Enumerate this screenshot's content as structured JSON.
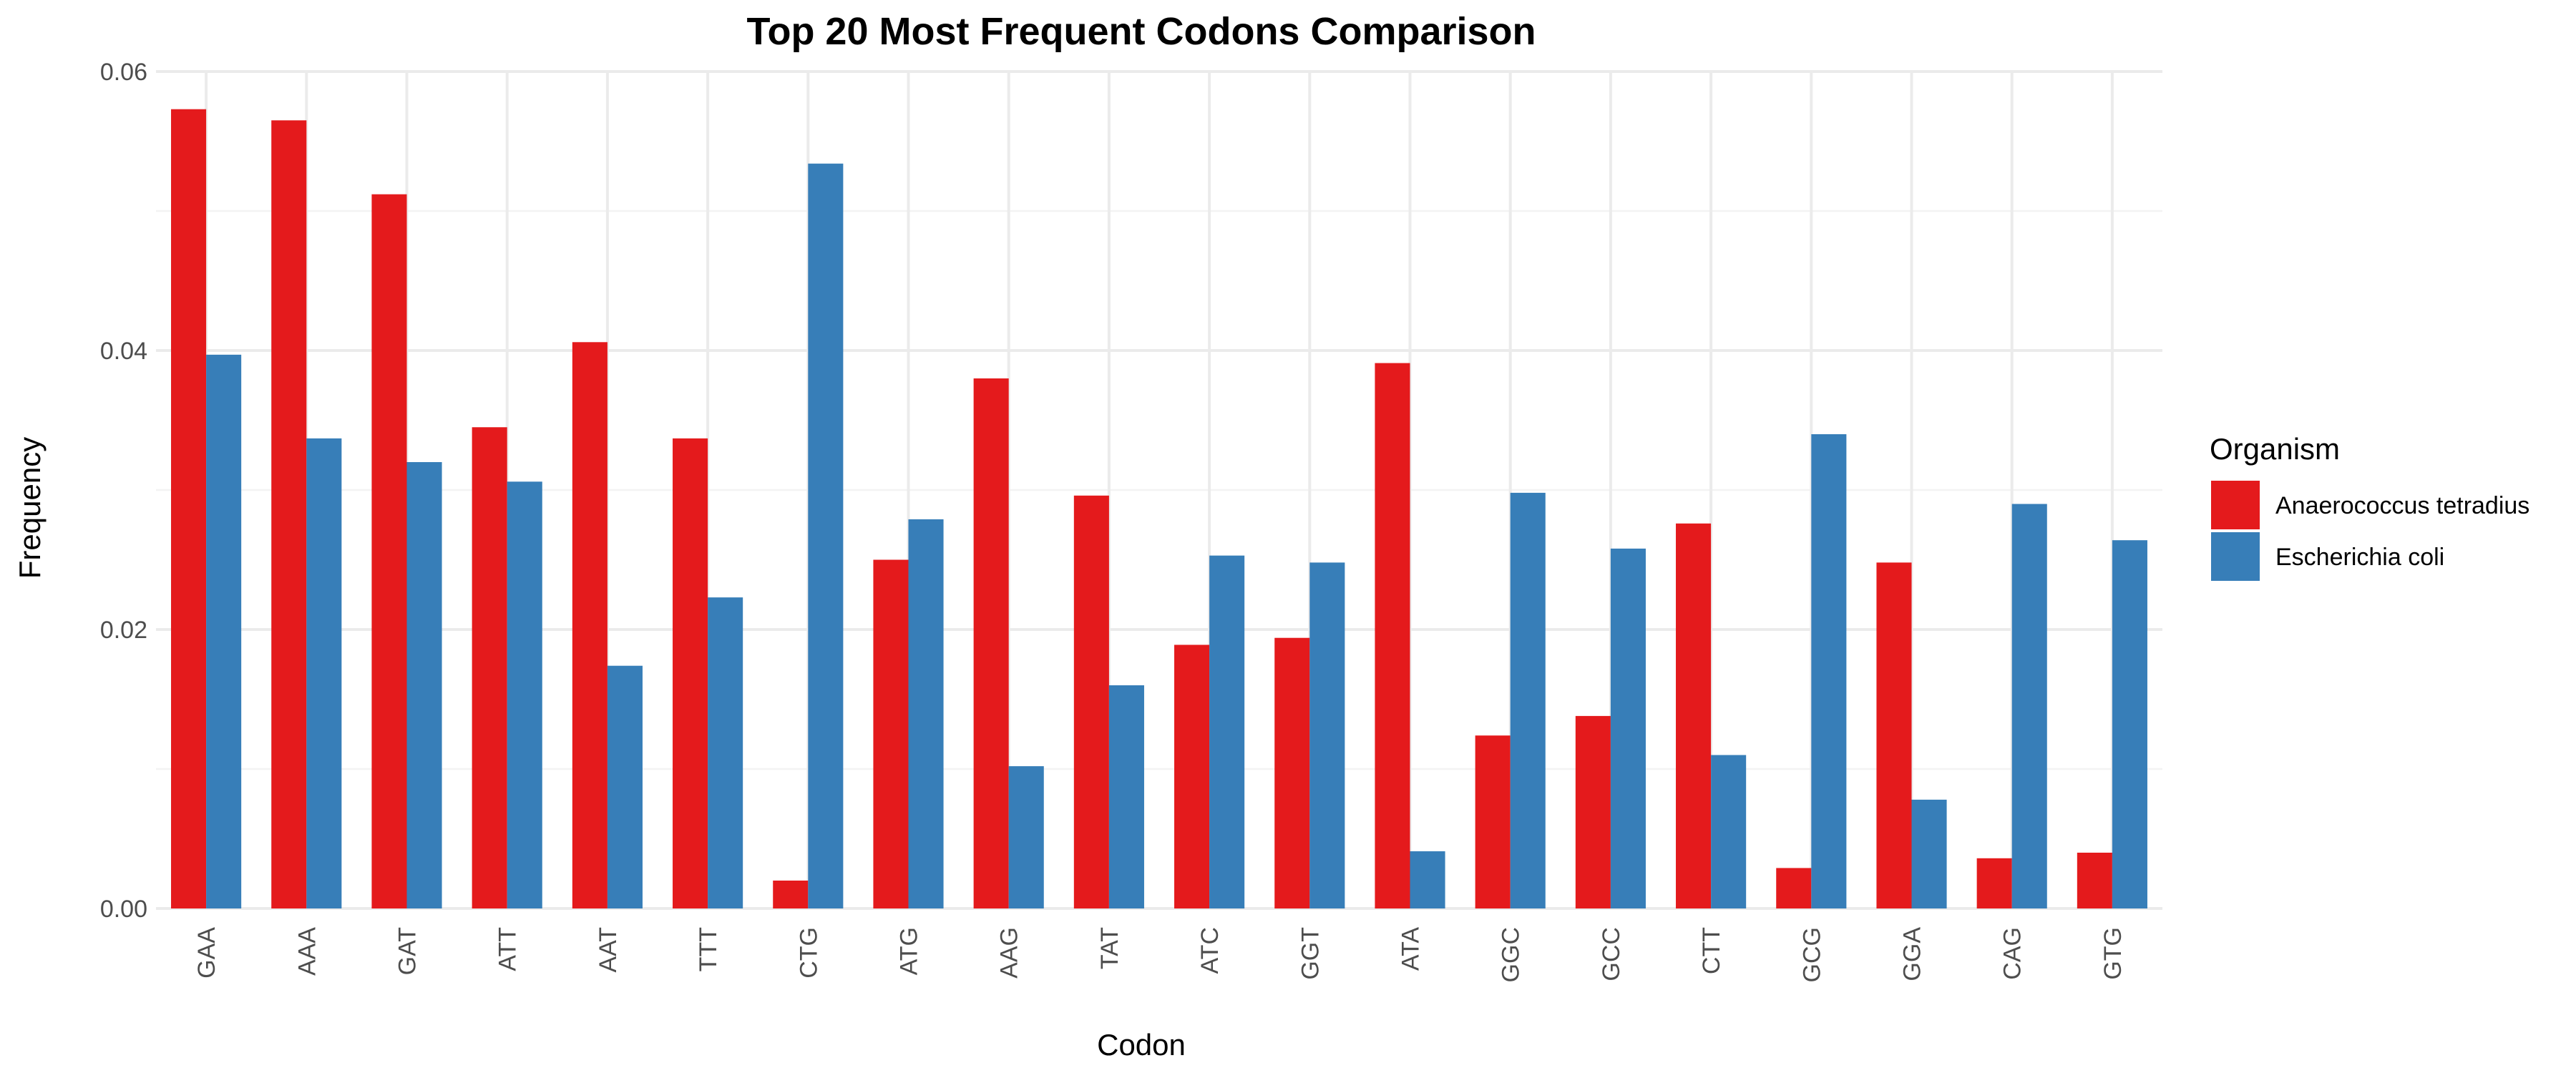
{
  "chart_data": {
    "type": "bar",
    "title": "Top 20 Most Frequent Codons Comparison",
    "xlabel": "Codon",
    "ylabel": "Frequency",
    "ylim": [
      0,
      0.06
    ],
    "yticks": [
      0.0,
      0.02,
      0.04,
      0.06
    ],
    "ytick_labels": [
      "0.00",
      "0.02",
      "0.04",
      "0.06"
    ],
    "grid": true,
    "legend": {
      "title": "Organism",
      "placement": "right"
    },
    "categories": [
      "GAA",
      "AAA",
      "GAT",
      "ATT",
      "AAT",
      "TTT",
      "CTG",
      "ATG",
      "AAG",
      "TAT",
      "ATC",
      "GGT",
      "ATA",
      "GGC",
      "GCC",
      "CTT",
      "GCG",
      "GGA",
      "CAG",
      "GTG"
    ],
    "series": [
      {
        "name": "Anaerococcus tetradius",
        "color": "#e41a1c",
        "values": [
          0.0573,
          0.0565,
          0.0512,
          0.0345,
          0.0406,
          0.0337,
          0.002,
          0.025,
          0.038,
          0.0296,
          0.0189,
          0.0194,
          0.0391,
          0.0124,
          0.0138,
          0.0276,
          0.0029,
          0.0248,
          0.0036,
          0.004
        ]
      },
      {
        "name": "Escherichia coli",
        "color": "#377eb8",
        "values": [
          0.0397,
          0.0337,
          0.032,
          0.0306,
          0.0174,
          0.0223,
          0.0534,
          0.0279,
          0.0102,
          0.016,
          0.0253,
          0.0248,
          0.0041,
          0.0298,
          0.0258,
          0.011,
          0.034,
          0.0078,
          0.029,
          0.0264
        ]
      }
    ]
  }
}
